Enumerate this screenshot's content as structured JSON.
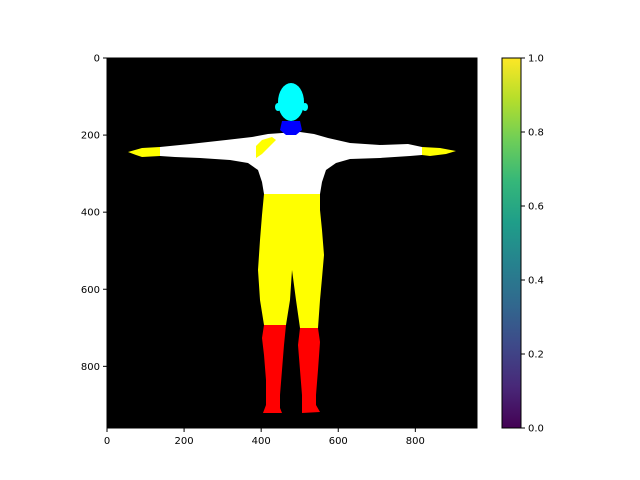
{
  "chart_data": {
    "type": "heatmap",
    "title": "",
    "xlabel": "",
    "ylabel": "",
    "xlim": [
      0,
      960
    ],
    "ylim": [
      960,
      0
    ],
    "y_inverted": true,
    "x_ticks": [
      0,
      200,
      400,
      600,
      800
    ],
    "y_ticks": [
      0,
      200,
      400,
      600,
      800
    ],
    "background_color": "#000000",
    "segments": [
      {
        "name": "head",
        "color": "#00ffff"
      },
      {
        "name": "neck",
        "color": "#0000ff"
      },
      {
        "name": "torso-and-arms",
        "color": "#ffffff"
      },
      {
        "name": "hands-and-shoulder-patch",
        "color": "#ffff00"
      },
      {
        "name": "hips-and-thighs",
        "color": "#ffff00"
      },
      {
        "name": "lower-legs",
        "color": "#ff0000"
      }
    ],
    "colorbar": {
      "cmap": "viridis",
      "range": [
        0.0,
        1.0
      ],
      "ticks": [
        "0.0",
        "0.2",
        "0.4",
        "0.6",
        "0.8",
        "1.0"
      ],
      "colors": [
        "#440154",
        "#482878",
        "#3e4989",
        "#31688e",
        "#26828e",
        "#1f9e89",
        "#35b779",
        "#6ece58",
        "#b5de2b",
        "#fde725"
      ]
    }
  }
}
